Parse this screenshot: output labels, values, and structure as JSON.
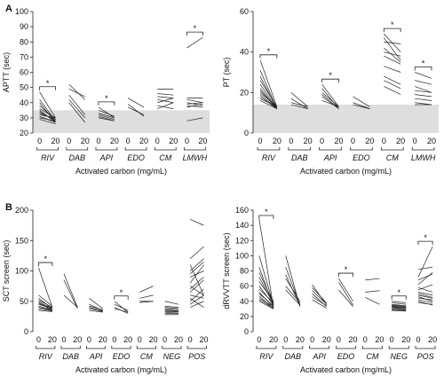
{
  "panel_letters": [
    "A",
    "B"
  ],
  "xlabel": "Activated carbon (mg/mL)",
  "chart_data": [
    {
      "type": "line",
      "ylabel": "APTT (sec)",
      "ylim": [
        20,
        100
      ],
      "yticks": [
        20,
        30,
        40,
        50,
        60,
        70,
        80,
        90,
        100
      ],
      "xlabel": "Activated carbon (mg/mL)",
      "band": [
        20,
        35
      ],
      "dose_labels": [
        "0",
        "20"
      ],
      "groups": [
        {
          "name": "RIV",
          "sig": true,
          "pairs": [
            [
              47,
              30
            ],
            [
              42,
              28
            ],
            [
              40,
              27
            ],
            [
              38,
              29
            ],
            [
              36,
              30
            ],
            [
              35,
              27
            ],
            [
              34,
              28
            ],
            [
              33,
              29
            ],
            [
              32,
              30
            ],
            [
              31,
              27
            ],
            [
              30,
              28
            ],
            [
              29,
              26
            ]
          ]
        },
        {
          "name": "DAB",
          "sig": false,
          "pairs": [
            [
              52,
              42
            ],
            [
              49,
              44
            ],
            [
              45,
              32
            ],
            [
              42,
              30
            ],
            [
              40,
              27
            ]
          ]
        },
        {
          "name": "API",
          "sig": true,
          "pairs": [
            [
              37,
              30
            ],
            [
              35,
              31
            ],
            [
              33,
              30
            ],
            [
              32,
              29
            ],
            [
              31,
              28
            ],
            [
              30,
              28
            ]
          ]
        },
        {
          "name": "EDO",
          "sig": false,
          "pairs": [
            [
              43,
              37
            ],
            [
              39,
              31
            ],
            [
              37,
              32
            ]
          ]
        },
        {
          "name": "CM",
          "sig": false,
          "pairs": [
            [
              49,
              49
            ],
            [
              46,
              45
            ],
            [
              44,
              43
            ],
            [
              42,
              40
            ],
            [
              40,
              43
            ],
            [
              38,
              36
            ],
            [
              36,
              40
            ]
          ]
        },
        {
          "name": "LMWH",
          "sig": true,
          "pairs": [
            [
              76,
              83
            ],
            [
              43,
              43
            ],
            [
              42,
              40
            ],
            [
              40,
              38
            ],
            [
              39,
              40
            ],
            [
              38,
              37
            ],
            [
              37,
              39
            ],
            [
              28,
              30
            ]
          ]
        }
      ]
    },
    {
      "type": "line",
      "ylabel": "PT (sec)",
      "ylim": [
        0,
        60
      ],
      "yticks": [
        0,
        20,
        40,
        60
      ],
      "xlabel": "Activated carbon (mg/mL)",
      "band": [
        0,
        14
      ],
      "dose_labels": [
        "0",
        "20"
      ],
      "groups": [
        {
          "name": "RIV",
          "sig": true,
          "pairs": [
            [
              36,
              13
            ],
            [
              31,
              12
            ],
            [
              28,
              12
            ],
            [
              26,
              13
            ],
            [
              24,
              12
            ],
            [
              22,
              12
            ],
            [
              21,
              12
            ],
            [
              20,
              13
            ],
            [
              19,
              12
            ],
            [
              18,
              12
            ],
            [
              17,
              13
            ],
            [
              16,
              12
            ]
          ]
        },
        {
          "name": "DAB",
          "sig": false,
          "pairs": [
            [
              20,
              13
            ],
            [
              17,
              12
            ],
            [
              15,
              13
            ],
            [
              14,
              12
            ]
          ]
        },
        {
          "name": "API",
          "sig": true,
          "pairs": [
            [
              24,
              13
            ],
            [
              22,
              12
            ],
            [
              20,
              13
            ],
            [
              19,
              12
            ],
            [
              18,
              12
            ],
            [
              16,
              13
            ]
          ]
        },
        {
          "name": "EDO",
          "sig": false,
          "pairs": [
            [
              18,
              13
            ],
            [
              15,
              12
            ],
            [
              14,
              12
            ]
          ]
        },
        {
          "name": "CM",
          "sig": true,
          "pairs": [
            [
              49,
              40
            ],
            [
              47,
              36
            ],
            [
              45,
              44
            ],
            [
              42,
              35
            ],
            [
              40,
              38
            ],
            [
              38,
              34
            ],
            [
              33,
              30
            ],
            [
              28,
              24
            ],
            [
              26,
              22
            ],
            [
              23,
              19
            ]
          ]
        },
        {
          "name": "LMWH",
          "sig": true,
          "pairs": [
            [
              30,
              27
            ],
            [
              26,
              24
            ],
            [
              23,
              20
            ],
            [
              21,
              20
            ],
            [
              19,
              18
            ],
            [
              17,
              16
            ],
            [
              15,
              14
            ],
            [
              14,
              14
            ]
          ]
        }
      ]
    },
    {
      "type": "line",
      "ylabel": "SCT screen (sec)",
      "ylim": [
        0,
        200
      ],
      "yticks": [
        0,
        50,
        100,
        150,
        200
      ],
      "xlabel": "Activated carbon (mg/mL)",
      "dose_labels": [
        "0",
        "20"
      ],
      "groups": [
        {
          "name": "RIV",
          "sig": true,
          "pairs": [
            [
              105,
              40
            ],
            [
              60,
              42
            ],
            [
              55,
              38
            ],
            [
              52,
              40
            ],
            [
              50,
              36
            ],
            [
              48,
              35
            ],
            [
              46,
              40
            ],
            [
              45,
              38
            ],
            [
              42,
              36
            ],
            [
              40,
              35
            ],
            [
              38,
              34
            ],
            [
              35,
              33
            ]
          ]
        },
        {
          "name": "DAB",
          "sig": false,
          "pairs": [
            [
              95,
              40
            ],
            [
              85,
              38
            ],
            [
              60,
              40
            ]
          ]
        },
        {
          "name": "API",
          "sig": false,
          "pairs": [
            [
              55,
              38
            ],
            [
              45,
              35
            ],
            [
              42,
              36
            ],
            [
              40,
              34
            ],
            [
              38,
              33
            ],
            [
              35,
              32
            ]
          ]
        },
        {
          "name": "EDO",
          "sig": true,
          "pairs": [
            [
              50,
              32
            ],
            [
              45,
              35
            ],
            [
              40,
              30
            ],
            [
              38,
              32
            ]
          ]
        },
        {
          "name": "CM",
          "sig": false,
          "pairs": [
            [
              65,
              75
            ],
            [
              55,
              60
            ],
            [
              50,
              50
            ],
            [
              48,
              50
            ]
          ]
        },
        {
          "name": "NEG",
          "sig": false,
          "pairs": [
            [
              50,
              45
            ],
            [
              42,
              40
            ],
            [
              40,
              38
            ],
            [
              38,
              36
            ],
            [
              36,
              34
            ],
            [
              35,
              33
            ],
            [
              33,
              32
            ],
            [
              32,
              30
            ],
            [
              30,
              30
            ],
            [
              28,
              28
            ]
          ]
        },
        {
          "name": "POS",
          "sig": false,
          "pairs": [
            [
              185,
              175
            ],
            [
              120,
              140
            ],
            [
              110,
              60
            ],
            [
              100,
              120
            ],
            [
              95,
              115
            ],
            [
              90,
              100
            ],
            [
              80,
              110
            ],
            [
              75,
              60
            ],
            [
              70,
              90
            ],
            [
              65,
              85
            ],
            [
              60,
              55
            ],
            [
              55,
              40
            ],
            [
              50,
              70
            ],
            [
              45,
              60
            ],
            [
              40,
              50
            ]
          ]
        }
      ]
    },
    {
      "type": "line",
      "ylabel": "dRVVTT screen (sec)",
      "ylim": [
        0,
        160
      ],
      "yticks": [
        0,
        20,
        40,
        60,
        80,
        100,
        120,
        140,
        160
      ],
      "xlabel": "Activated carbon (mg/mL)",
      "dose_labels": [
        "0",
        "20"
      ],
      "groups": [
        {
          "name": "RIV",
          "sig": true,
          "pairs": [
            [
              148,
              32
            ],
            [
              100,
              35
            ],
            [
              85,
              33
            ],
            [
              78,
              38
            ],
            [
              72,
              36
            ],
            [
              66,
              40
            ],
            [
              60,
              35
            ],
            [
              56,
              38
            ],
            [
              52,
              32
            ],
            [
              50,
              34
            ],
            [
              47,
              30
            ],
            [
              44,
              33
            ],
            [
              42,
              31
            ],
            [
              40,
              30
            ]
          ]
        },
        {
          "name": "DAB",
          "sig": false,
          "pairs": [
            [
              100,
              33
            ],
            [
              85,
              35
            ],
            [
              75,
              34
            ],
            [
              70,
              40
            ],
            [
              60,
              38
            ],
            [
              55,
              35
            ]
          ]
        },
        {
          "name": "API",
          "sig": false,
          "pairs": [
            [
              62,
              35
            ],
            [
              58,
              38
            ],
            [
              54,
              36
            ],
            [
              50,
              33
            ],
            [
              46,
              34
            ],
            [
              42,
              31
            ]
          ]
        },
        {
          "name": "EDO",
          "sig": true,
          "pairs": [
            [
              70,
              40
            ],
            [
              65,
              35
            ],
            [
              55,
              33
            ]
          ]
        },
        {
          "name": "CM",
          "sig": false,
          "pairs": [
            [
              68,
              70
            ],
            [
              52,
              54
            ],
            [
              45,
              36
            ]
          ]
        },
        {
          "name": "NEG",
          "sig": true,
          "pairs": [
            [
              40,
              38
            ],
            [
              38,
              36
            ],
            [
              36,
              34
            ],
            [
              35,
              33
            ],
            [
              34,
              32
            ],
            [
              33,
              32
            ],
            [
              32,
              31
            ],
            [
              31,
              30
            ],
            [
              30,
              29
            ],
            [
              29,
              28
            ],
            [
              28,
              27
            ]
          ]
        },
        {
          "name": "POS",
          "sig": true,
          "pairs": [
            [
              82,
              85
            ],
            [
              72,
              112
            ],
            [
              68,
              76
            ],
            [
              62,
              78
            ],
            [
              58,
              52
            ],
            [
              55,
              62
            ],
            [
              52,
              48
            ],
            [
              50,
              45
            ],
            [
              48,
              44
            ],
            [
              46,
              40
            ],
            [
              44,
              42
            ],
            [
              42,
              38
            ],
            [
              40,
              35
            ],
            [
              38,
              36
            ]
          ]
        }
      ]
    }
  ]
}
